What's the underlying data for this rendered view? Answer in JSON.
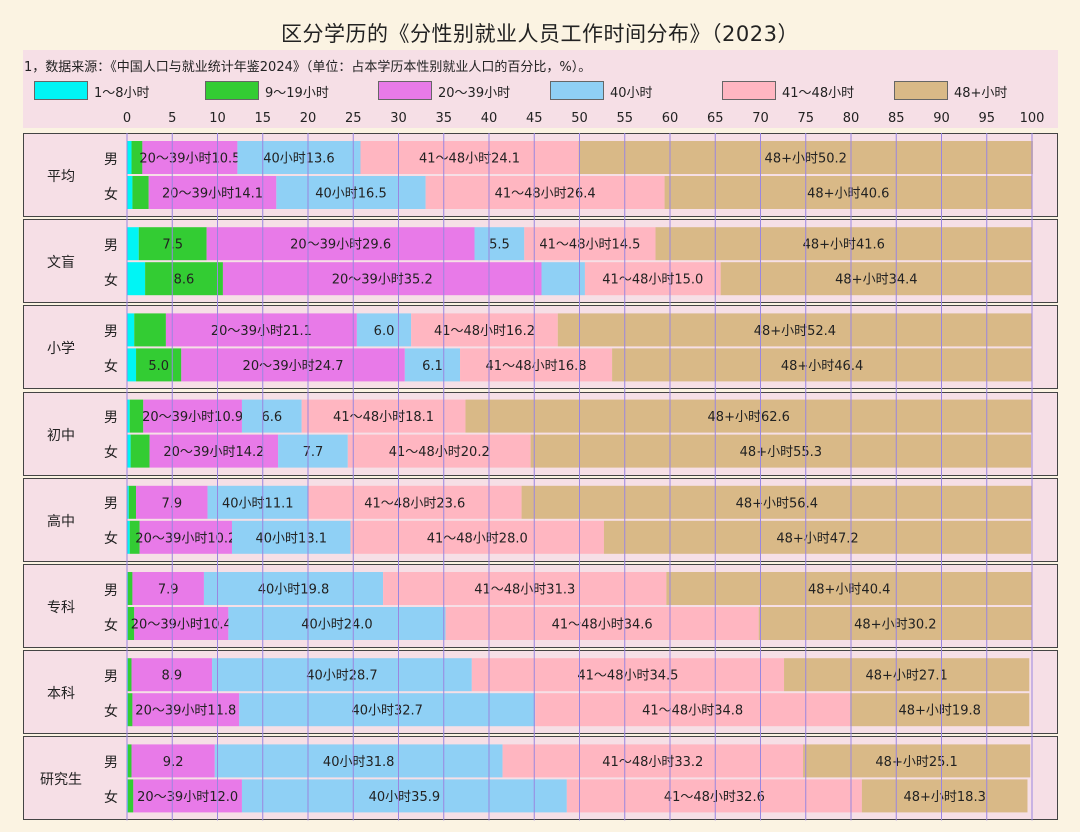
{
  "title": "区分学历的《分性别就业人员工作时间分布》（2023）",
  "source": "1，数据来源：《中国人口与就业统计年鉴2024》（单位：占本学历本性别就业人口的百分比，%）。",
  "colors": [
    "#00f5f5",
    "#33cc33",
    "#e87ae8",
    "#8fd0f5",
    "#ffb6c1",
    "#d9b987"
  ],
  "chart_data": {
    "type": "bar",
    "stacked": true,
    "orientation": "horizontal",
    "xlim": [
      0,
      100
    ],
    "ticks": [
      0,
      5,
      10,
      15,
      20,
      25,
      30,
      35,
      40,
      45,
      50,
      55,
      60,
      65,
      70,
      75,
      80,
      85,
      90,
      95,
      100
    ],
    "legend": [
      "1～8小时",
      "9～19小时",
      "20～39小时",
      "40小时",
      "41～48小时",
      "48+小时"
    ],
    "groups": [
      {
        "label": "平均",
        "rows": [
          {
            "sex": "男",
            "values": [
              0.5,
              1.2,
              10.5,
              13.6,
              24.1,
              50.2
            ],
            "labels": [
              "",
              "",
              "20～39小时10.5",
              "40小时13.6",
              "41～48小时24.1",
              "48+小时50.2"
            ]
          },
          {
            "sex": "女",
            "values": [
              0.6,
              1.8,
              14.1,
              16.5,
              26.4,
              40.6
            ],
            "labels": [
              "",
              "",
              "20～39小时14.1",
              "40小时16.5",
              "41～48小时26.4",
              "48+小时40.6"
            ]
          }
        ]
      },
      {
        "label": "文盲",
        "rows": [
          {
            "sex": "男",
            "values": [
              1.3,
              7.5,
              29.6,
              5.5,
              14.5,
              41.6
            ],
            "labels": [
              "",
              "7.5",
              "20～39小时29.6",
              "5.5",
              "41～48小时14.5",
              "48+小时41.6"
            ]
          },
          {
            "sex": "女",
            "values": [
              2.0,
              8.6,
              35.2,
              4.8,
              15.0,
              34.4
            ],
            "labels": [
              "",
              "8.6",
              "20～39小时35.2",
              "",
              "41～48小时15.0",
              "48+小时34.4"
            ]
          }
        ]
      },
      {
        "label": "小学",
        "rows": [
          {
            "sex": "男",
            "values": [
              0.8,
              3.5,
              21.1,
              6.0,
              16.2,
              52.4
            ],
            "labels": [
              "",
              "",
              "20～39小时21.1",
              "6.0",
              "41～48小时16.2",
              "48+小时52.4"
            ]
          },
          {
            "sex": "女",
            "values": [
              1.0,
              5.0,
              24.7,
              6.1,
              16.8,
              46.4
            ],
            "labels": [
              "",
              "5.0",
              "20～39小时24.7",
              "6.1",
              "41～48小时16.8",
              "48+小时46.4"
            ]
          }
        ]
      },
      {
        "label": "初中",
        "rows": [
          {
            "sex": "男",
            "values": [
              0.3,
              1.5,
              10.9,
              6.6,
              18.1,
              62.6
            ],
            "labels": [
              "",
              "",
              "20～39小时10.9",
              "6.6",
              "41～48小时18.1",
              "48+小时62.6"
            ]
          },
          {
            "sex": "女",
            "values": [
              0.4,
              2.1,
              14.2,
              7.7,
              20.2,
              55.3
            ],
            "labels": [
              "",
              "",
              "20～39小时14.2",
              "7.7",
              "41～48小时20.2",
              "48+小时55.3"
            ]
          }
        ]
      },
      {
        "label": "高中",
        "rows": [
          {
            "sex": "男",
            "values": [
              0.2,
              0.8,
              7.9,
              11.1,
              23.6,
              56.4
            ],
            "labels": [
              "",
              "",
              "7.9",
              "40小时11.1",
              "41～48小时23.6",
              "48+小时56.4"
            ]
          },
          {
            "sex": "女",
            "values": [
              0.3,
              1.1,
              10.2,
              13.1,
              28.0,
              47.2
            ],
            "labels": [
              "",
              "",
              "20～39小时10.2",
              "40小时13.1",
              "41～48小时28.0",
              "48+小时47.2"
            ]
          }
        ]
      },
      {
        "label": "专科",
        "rows": [
          {
            "sex": "男",
            "values": [
              0.1,
              0.5,
              7.9,
              19.8,
              31.3,
              40.4
            ],
            "labels": [
              "",
              "",
              "7.9",
              "40小时19.8",
              "41～48小时31.3",
              "48+小时40.4"
            ]
          },
          {
            "sex": "女",
            "values": [
              0.1,
              0.7,
              10.4,
              24.0,
              34.6,
              30.2
            ],
            "labels": [
              "",
              "",
              "20～39小时10.4",
              "40小时24.0",
              "41～48小时34.6",
              "48+小时30.2"
            ]
          }
        ]
      },
      {
        "label": "本科",
        "rows": [
          {
            "sex": "男",
            "values": [
              0.1,
              0.4,
              8.9,
              28.7,
              34.5,
              27.1
            ],
            "labels": [
              "",
              "",
              "8.9",
              "40小时28.7",
              "41～48小时34.5",
              "48+小时27.1"
            ]
          },
          {
            "sex": "女",
            "values": [
              0.1,
              0.5,
              11.8,
              32.7,
              34.8,
              19.8
            ],
            "labels": [
              "",
              "",
              "20～39小时11.8",
              "40小时32.7",
              "41～48小时34.8",
              "48+小时19.8"
            ]
          }
        ]
      },
      {
        "label": "研究生",
        "rows": [
          {
            "sex": "男",
            "values": [
              0.1,
              0.4,
              9.2,
              31.8,
              33.2,
              25.1
            ],
            "labels": [
              "",
              "",
              "9.2",
              "40小时31.8",
              "41～48小时33.2",
              "48+小时25.1"
            ]
          },
          {
            "sex": "女",
            "values": [
              0.1,
              0.6,
              12.0,
              35.9,
              32.6,
              18.3
            ],
            "labels": [
              "",
              "",
              "20～39小时12.0",
              "40小时35.9",
              "41～48小时32.6",
              "48+小时18.3"
            ]
          }
        ]
      }
    ]
  }
}
